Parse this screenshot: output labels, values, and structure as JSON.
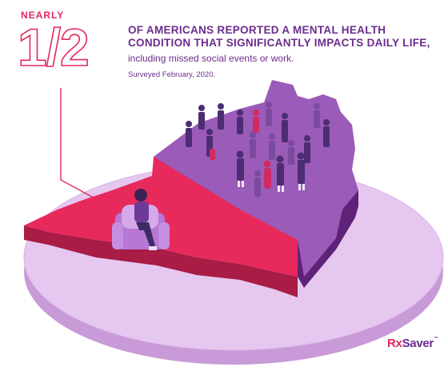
{
  "stat": {
    "prefix": "NEARLY",
    "fraction": "1/2",
    "headline": "OF AMERICANS REPORTED A MENTAL HEALTH CONDITION THAT SIGNIFICANTLY IMPACTS DAILY LIFE,",
    "subline": "including missed social events or work.",
    "survey": "Surveyed February, 2020.",
    "share_affected": 0.5
  },
  "brand": {
    "rx": "Rx",
    "name": "Saver",
    "tm": "™"
  },
  "colors": {
    "accent": "#e3285c",
    "brand_purple": "#6b2c8d",
    "platform": "#e6c7ef",
    "map_purple": "#9b5bb8",
    "map_red": "#e8295b"
  },
  "illustration": {
    "seated_figure_icon": "person-in-armchair",
    "crowd_icon": "crowd-of-people"
  }
}
